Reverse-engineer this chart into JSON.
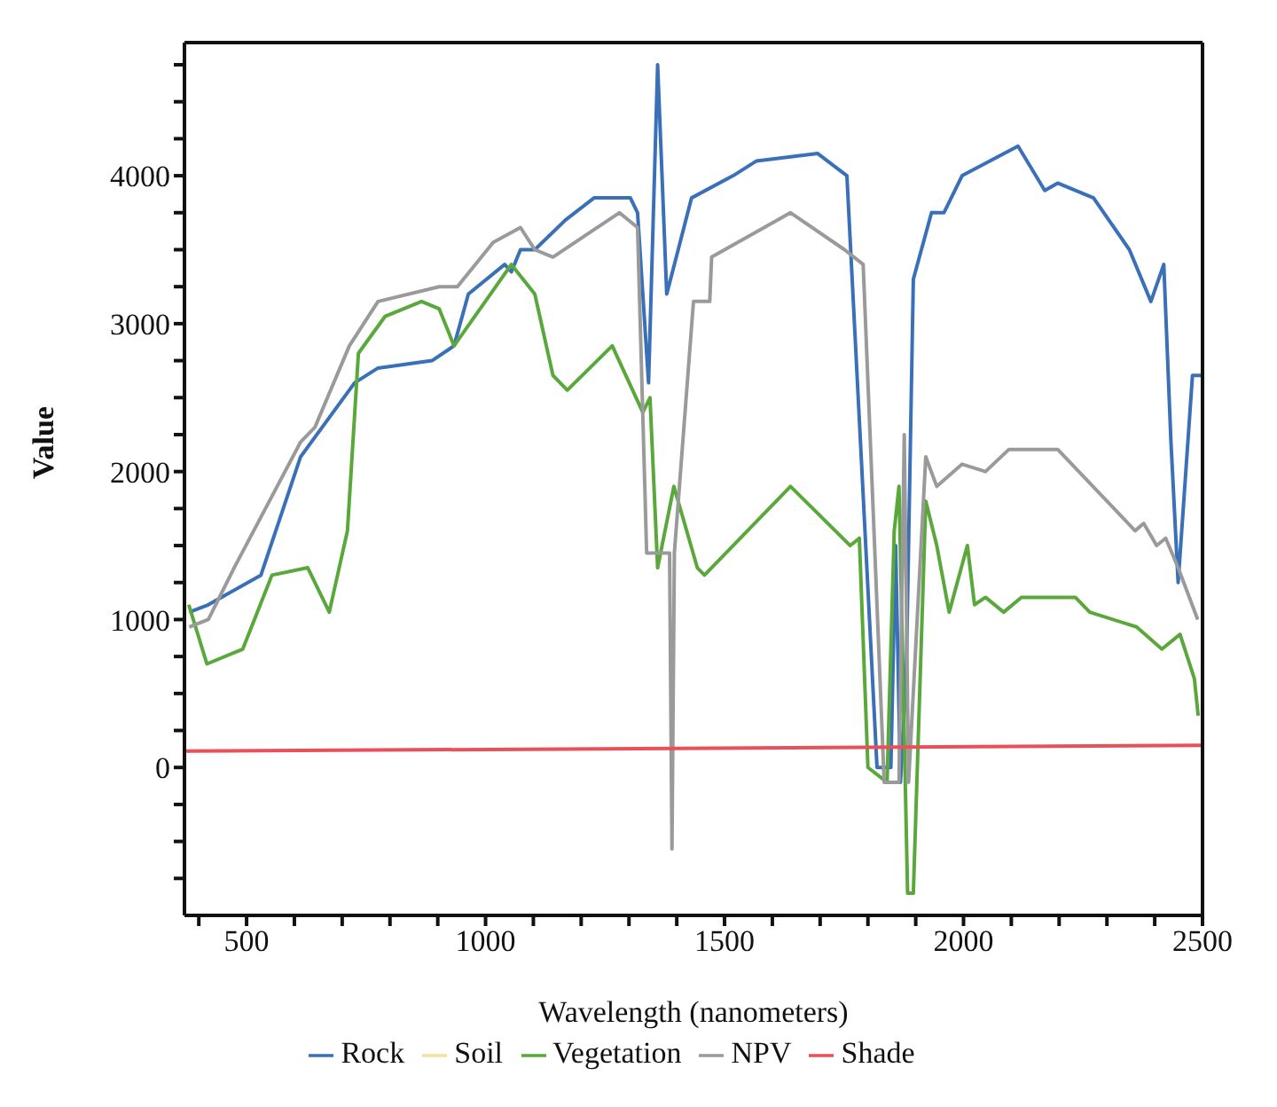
{
  "chart_data": {
    "type": "line",
    "xlabel": "Wavelength (nanometers)",
    "ylabel": "Value",
    "xlim": [
      370,
      2500
    ],
    "ylim": [
      -1000,
      4900
    ],
    "xticks": [
      {
        "value": 400,
        "label": null
      },
      500,
      {
        "value": 600,
        "label": null
      },
      {
        "value": 700,
        "label": null
      },
      {
        "value": 800,
        "label": null
      },
      {
        "value": 900,
        "label": null
      },
      1000,
      {
        "value": 1100,
        "label": null
      },
      {
        "value": 1200,
        "label": null
      },
      {
        "value": 1300,
        "label": null
      },
      {
        "value": 1400,
        "label": null
      },
      1500,
      {
        "value": 1600,
        "label": null
      },
      {
        "value": 1700,
        "label": null
      },
      {
        "value": 1800,
        "label": null
      },
      {
        "value": 1900,
        "label": null
      },
      2000,
      {
        "value": 2100,
        "label": null
      },
      {
        "value": 2200,
        "label": null
      },
      {
        "value": 2300,
        "label": null
      },
      {
        "value": 2400,
        "label": null
      },
      2500
    ],
    "yticks": [
      {
        "value": -750,
        "label": null
      },
      {
        "value": -500,
        "label": null
      },
      {
        "value": -250,
        "label": null
      },
      0,
      {
        "value": 250,
        "label": null
      },
      {
        "value": 500,
        "label": null
      },
      {
        "value": 750,
        "label": null
      },
      1000,
      {
        "value": 1250,
        "label": null
      },
      {
        "value": 1500,
        "label": null
      },
      {
        "value": 1750,
        "label": null
      },
      2000,
      {
        "value": 2250,
        "label": null
      },
      {
        "value": 2500,
        "label": null
      },
      {
        "value": 2750,
        "label": null
      },
      3000,
      {
        "value": 3250,
        "label": null
      },
      {
        "value": 3500,
        "label": null
      },
      {
        "value": 3750,
        "label": null
      },
      4000,
      {
        "value": 4250,
        "label": null
      },
      {
        "value": 4500,
        "label": null
      },
      {
        "value": 4750,
        "label": null
      }
    ],
    "legend": "bottom",
    "marker": "none",
    "line_style": "solid",
    "series": [
      {
        "name": "Rock",
        "color": "#3a70b8",
        "x": [
          380,
          420,
          530,
          613,
          726,
          775,
          888,
          934,
          964,
          1040,
          1054,
          1073,
          1103,
          1167,
          1227,
          1303,
          1318,
          1341,
          1360,
          1379,
          1431,
          1518,
          1567,
          1695,
          1756,
          1819,
          1848,
          1858,
          1868,
          1880,
          1895,
          1933,
          1959,
          1997,
          2114,
          2170,
          2197,
          2272,
          2347,
          2392,
          2419,
          2434,
          2449,
          2479,
          2500
        ],
        "values": [
          1050,
          1100,
          1300,
          2100,
          2600,
          2700,
          2750,
          2850,
          3200,
          3400,
          3350,
          3500,
          3500,
          3700,
          3850,
          3850,
          3750,
          2600,
          4750,
          3200,
          3850,
          4000,
          4100,
          4150,
          4000,
          0,
          0,
          1500,
          -100,
          600,
          3300,
          3750,
          3750,
          4000,
          4200,
          3900,
          3950,
          3850,
          3500,
          3150,
          3400,
          2200,
          1250,
          2650,
          2650
        ]
      },
      {
        "name": "Soil",
        "color": "#f2e4a0"
      },
      {
        "name": "Vegetation",
        "color": "#5aa83c",
        "x": [
          379,
          417,
          492,
          553,
          628,
          673,
          711,
          734,
          790,
          866,
          903,
          934,
          1054,
          1103,
          1141,
          1171,
          1265,
          1329,
          1344,
          1360,
          1394,
          1443,
          1458,
          1638,
          1763,
          1782,
          1800,
          1840,
          1855,
          1865,
          1883,
          1895,
          1921,
          1944,
          1970,
          2008,
          2023,
          2046,
          2084,
          2121,
          2234,
          2264,
          2362,
          2415,
          2453,
          2483,
          2491
        ],
        "values": [
          1100,
          700,
          800,
          1300,
          1350,
          1050,
          1600,
          2800,
          3050,
          3150,
          3100,
          2850,
          3400,
          3200,
          2650,
          2550,
          2850,
          2400,
          2500,
          1350,
          1900,
          1350,
          1300,
          1900,
          1500,
          1550,
          0,
          -100,
          1600,
          1900,
          -850,
          -850,
          1800,
          1500,
          1050,
          1500,
          1100,
          1150,
          1050,
          1150,
          1150,
          1050,
          950,
          800,
          900,
          600,
          350
        ]
      },
      {
        "name": "NPV",
        "color": "#9a9a9a",
        "x": [
          380,
          420,
          474,
          613,
          643,
          715,
          775,
          903,
          941,
          1016,
          1073,
          1103,
          1141,
          1280,
          1318,
          1337,
          1385,
          1390,
          1395,
          1435,
          1469,
          1473,
          1638,
          1751,
          1790,
          1834,
          1865,
          1876,
          1885,
          1921,
          1944,
          1997,
          2046,
          2095,
          2121,
          2197,
          2359,
          2377,
          2404,
          2423,
          2449,
          2490
        ],
        "values": [
          950,
          1000,
          1350,
          2200,
          2300,
          2850,
          3150,
          3250,
          3250,
          3550,
          3650,
          3500,
          3450,
          3750,
          3650,
          1450,
          1450,
          -550,
          1450,
          3150,
          3150,
          3450,
          3750,
          3500,
          3400,
          -100,
          -100,
          2250,
          -100,
          2100,
          1900,
          2050,
          2000,
          2150,
          2150,
          2150,
          1600,
          1650,
          1500,
          1550,
          1350,
          1000
        ]
      },
      {
        "name": "Shade",
        "color": "#e8505a",
        "x": [
          370,
          2500
        ],
        "values": [
          110,
          150
        ]
      }
    ]
  }
}
